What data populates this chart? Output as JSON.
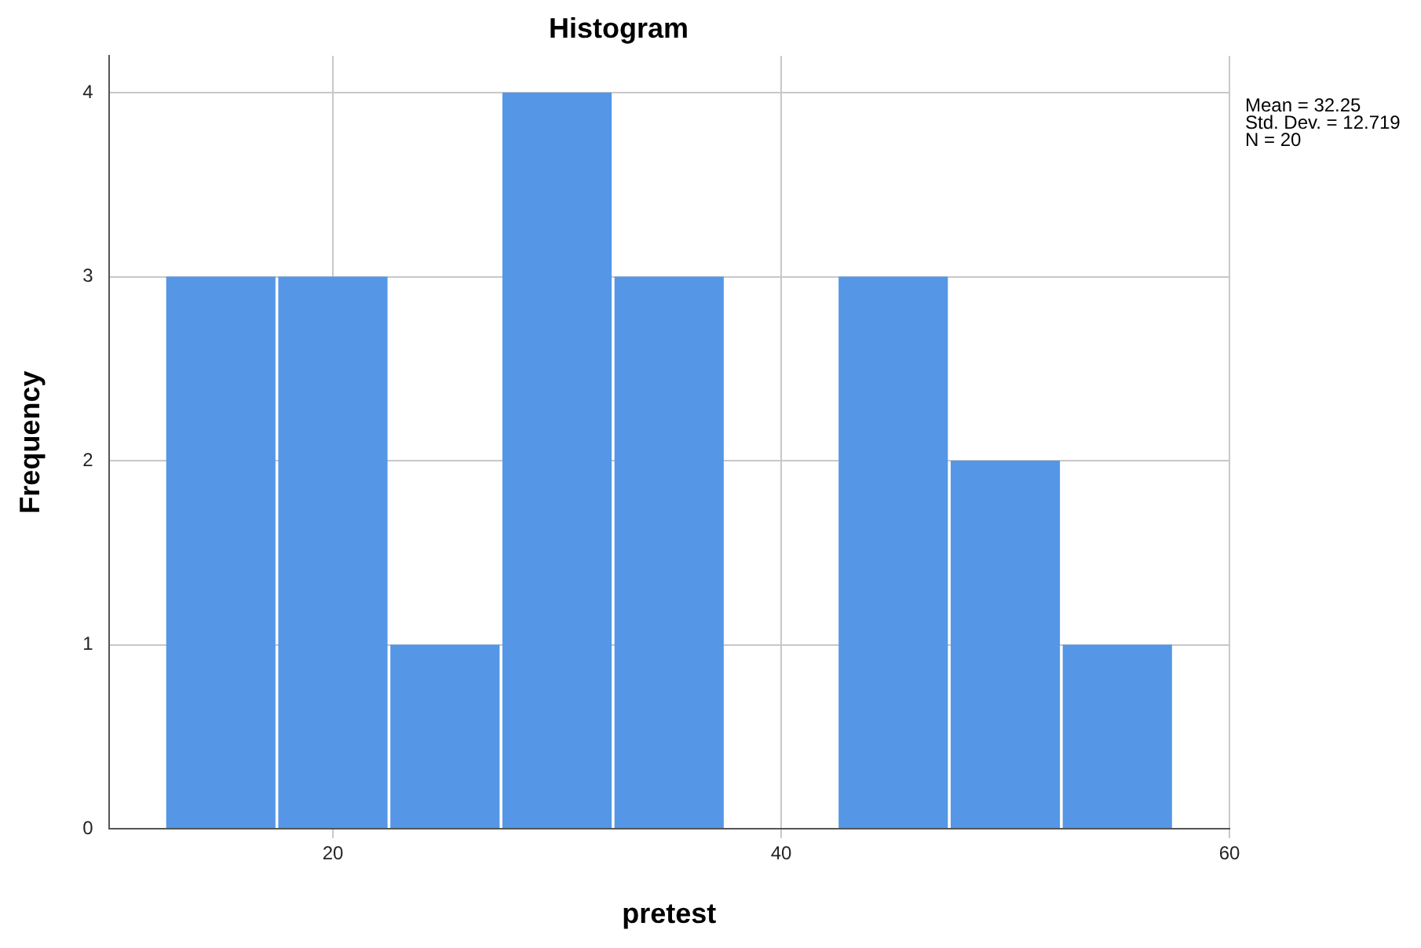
{
  "chart_data": {
    "type": "histogram",
    "title": "Histogram",
    "xlabel": "pretest",
    "ylabel": "Frequency",
    "bins": [
      12.5,
      17.5,
      22.5,
      27.5,
      32.5,
      37.5,
      42.5,
      47.5,
      52.5,
      57.5
    ],
    "values": [
      3,
      3,
      1,
      4,
      3,
      0,
      3,
      2,
      1
    ],
    "color": "#5596e6",
    "xlim": [
      10,
      60
    ],
    "xticks": [
      20,
      40,
      60
    ],
    "ylim": [
      0,
      4.2
    ],
    "yticks": [
      0,
      1,
      2,
      3,
      4
    ],
    "grid": true,
    "annotations": [
      "Mean = 32.25",
      "Std. Dev. = 12.719",
      "N = 20"
    ]
  }
}
